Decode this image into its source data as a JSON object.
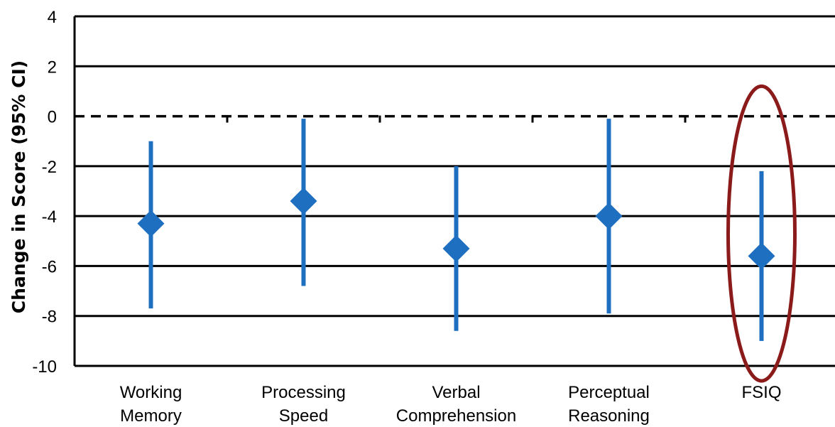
{
  "chart_data": {
    "type": "scatter",
    "subtype": "point-estimate-with-confidence-interval",
    "title": "",
    "xlabel": "",
    "ylabel": "Change in Score (95% CI)",
    "ylim": [
      -10,
      4
    ],
    "yticks": [
      4,
      2,
      0,
      -2,
      -4,
      -6,
      -8,
      -10
    ],
    "ytick_labels": [
      "4",
      "2",
      "0",
      "-2",
      "-4",
      "-6",
      "-8",
      "-10"
    ],
    "grid": true,
    "reference_line": {
      "y": 0,
      "style": "dashed"
    },
    "categories": [
      [
        "Working",
        "Memory"
      ],
      [
        "Processing",
        "Speed"
      ],
      [
        "Verbal",
        "Comprehension"
      ],
      [
        "Perceptual",
        "Reasoning"
      ],
      [
        "FSIQ"
      ]
    ],
    "series": [
      {
        "estimates": [
          -4.3,
          -3.4,
          -5.3,
          -4.0,
          -5.6
        ],
        "ci_lower": [
          -7.7,
          -6.8,
          -8.6,
          -7.9,
          -9.0
        ],
        "ci_upper": [
          -1.0,
          -0.1,
          -2.0,
          -0.1,
          -2.2
        ]
      }
    ],
    "highlight": {
      "category_index": 4,
      "shape": "ellipse"
    },
    "colors": {
      "marker": "#1f6fc1",
      "grid": "#000000",
      "highlight": "#8b1a1a"
    }
  }
}
